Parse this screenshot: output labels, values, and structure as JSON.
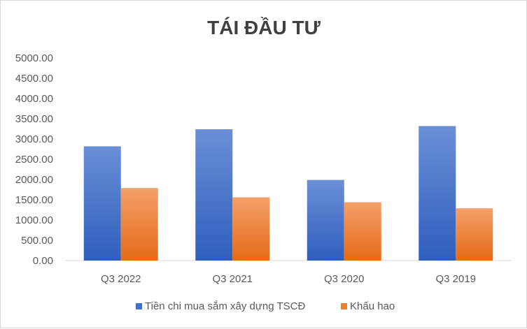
{
  "chart_data": {
    "type": "bar",
    "title": "TÁI ĐẦU TƯ",
    "categories": [
      "Q3 2022",
      "Q3 2021",
      "Q3 2020",
      "Q3 2019"
    ],
    "series": [
      {
        "name": "Tiền chi mua sắm xây dựng TSCĐ",
        "values": [
          2820,
          3240,
          1990,
          3320
        ],
        "color": "#4472c4"
      },
      {
        "name": "Khấu hao",
        "values": [
          1790,
          1560,
          1440,
          1290
        ],
        "color": "#ed7d31"
      }
    ],
    "ylim": [
      0,
      5000
    ],
    "yticks": [
      "0.00",
      "500.00",
      "1000.00",
      "1500.00",
      "2000.00",
      "2500.00",
      "3000.00",
      "3500.00",
      "4000.00",
      "4500.00",
      "5000.00"
    ],
    "grid": false,
    "legend_position": "bottom"
  }
}
